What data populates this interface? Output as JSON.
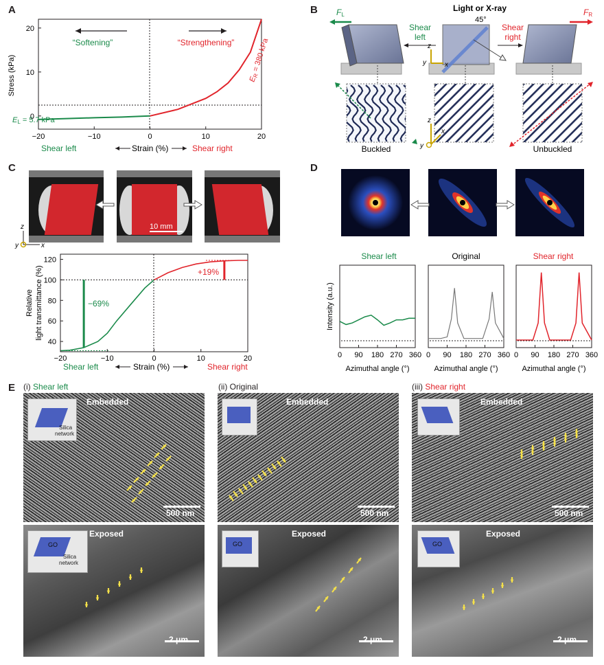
{
  "panels": {
    "a": "A",
    "b": "B",
    "c": "C",
    "d": "D",
    "e": "E"
  },
  "colors": {
    "green": "#1a8a4a",
    "red": "#e1242b",
    "navy": "#1f2a55",
    "gray": "#555555"
  },
  "panel_a": {
    "softening": "“Softening”",
    "strengthening": "“Strengthening”",
    "el_label": "E",
    "el_sub": "L",
    "el_value": " = 5.7 kPa",
    "er_label": "E",
    "er_sub": "R",
    "er_value": " = 380 kPa",
    "ylabel": "Stress (kPa)",
    "x_left": "Shear left",
    "x_mid": "Strain (%)",
    "x_right": "Shear right",
    "xticks": [
      "−20",
      "−10",
      "0",
      "10",
      "20"
    ],
    "yticks": [
      "0",
      "10",
      "20"
    ]
  },
  "panel_b": {
    "fl": "F",
    "fl_sub": "L",
    "fr": "F",
    "fr_sub": "R",
    "light": "Light or X-ray",
    "angle": "45°",
    "shear_left_1": "Shear",
    "shear_left_2": "left",
    "shear_right_1": "Shear",
    "shear_right_2": "right",
    "buckled": "Buckled",
    "unbuckled": "Unbuckled",
    "axis_z": "z",
    "axis_y": "y",
    "axis_x": "x"
  },
  "panel_c": {
    "scale": "10 mm",
    "ylabel1": "Relative",
    "ylabel2": "light transmittance (%)",
    "minus69": "−69%",
    "plus19": "+19%",
    "x_left": "Shear left",
    "x_mid": "Strain (%)",
    "x_right": "Shear right",
    "xticks": [
      "−20",
      "−10",
      "0",
      "10",
      "20"
    ],
    "yticks": [
      "40",
      "60",
      "80",
      "100",
      "120"
    ],
    "axis_z": "z",
    "axis_y": "y",
    "axis_x": "x"
  },
  "panel_d": {
    "shear_left": "Shear left",
    "original": "Original",
    "shear_right": "Shear right",
    "ylabel": "Intensity (a.u.)",
    "xlabel": "Azimuthal angle (°)",
    "xticks": [
      "0",
      "90",
      "180",
      "270",
      "360"
    ]
  },
  "panel_e": {
    "i_prefix": "(i)",
    "i_label": "Shear left",
    "ii_prefix": "(ii)",
    "ii_label": "Original",
    "iii_prefix": "(iii)",
    "iii_label": "Shear right",
    "embedded": "Embedded",
    "exposed": "Exposed",
    "scale_nm": "500 nm",
    "scale_um": "2 μm",
    "silica1": "Silica",
    "silica2": "network",
    "go": "GO"
  },
  "chart_data": [
    {
      "type": "line",
      "panel": "A",
      "xlabel": "Strain (%)",
      "ylabel": "Stress (kPa)",
      "xlim": [
        -20,
        20
      ],
      "ylim": [
        -3,
        22
      ],
      "series": [
        {
          "name": "Shear left",
          "x": [
            -20,
            -15,
            -10,
            -5,
            -2,
            0
          ],
          "y": [
            -0.8,
            -0.6,
            -0.4,
            -0.25,
            -0.1,
            0
          ]
        },
        {
          "name": "Shear right",
          "x": [
            0,
            5,
            10,
            12,
            14,
            16,
            18,
            20
          ],
          "y": [
            0,
            1.5,
            4,
            5.5,
            7.5,
            10.5,
            14.5,
            22
          ]
        }
      ]
    },
    {
      "type": "line",
      "panel": "C",
      "xlabel": "Strain (%)",
      "ylabel": "Relative light transmittance (%)",
      "xlim": [
        -20,
        20
      ],
      "ylim": [
        30,
        125
      ],
      "series": [
        {
          "name": "Shear left",
          "x": [
            -20,
            -18,
            -15,
            -12,
            -10,
            -8,
            -5,
            -2,
            0
          ],
          "y": [
            31,
            31.5,
            34,
            40,
            48,
            60,
            76,
            92,
            100
          ]
        },
        {
          "name": "Shear right",
          "x": [
            0,
            3,
            6,
            9,
            12,
            15,
            18,
            20
          ],
          "y": [
            100,
            107,
            112,
            115.5,
            117.5,
            118.5,
            119,
            119
          ]
        }
      ]
    },
    {
      "type": "line",
      "panel": "D",
      "xlabel": "Azimuthal angle (°)",
      "ylabel": "Intensity (a.u.)",
      "xlim": [
        0,
        360
      ],
      "series": [
        {
          "name": "Shear left",
          "x": [
            0,
            30,
            60,
            90,
            120,
            150,
            180,
            210,
            240,
            270,
            300,
            330,
            360
          ],
          "y": [
            0.32,
            0.28,
            0.3,
            0.34,
            0.38,
            0.4,
            0.34,
            0.27,
            0.3,
            0.34,
            0.34,
            0.36,
            0.36
          ]
        },
        {
          "name": "Original",
          "x": [
            0,
            60,
            90,
            110,
            125,
            140,
            170,
            200,
            260,
            290,
            305,
            320,
            360
          ],
          "y": [
            0.1,
            0.1,
            0.12,
            0.35,
            0.75,
            0.3,
            0.1,
            0.1,
            0.1,
            0.35,
            0.7,
            0.3,
            0.1
          ]
        },
        {
          "name": "Shear right",
          "x": [
            0,
            80,
            105,
            120,
            135,
            160,
            260,
            285,
            300,
            315,
            360
          ],
          "y": [
            0.08,
            0.08,
            0.3,
            0.95,
            0.3,
            0.08,
            0.08,
            0.3,
            0.95,
            0.3,
            0.08
          ]
        }
      ]
    }
  ]
}
